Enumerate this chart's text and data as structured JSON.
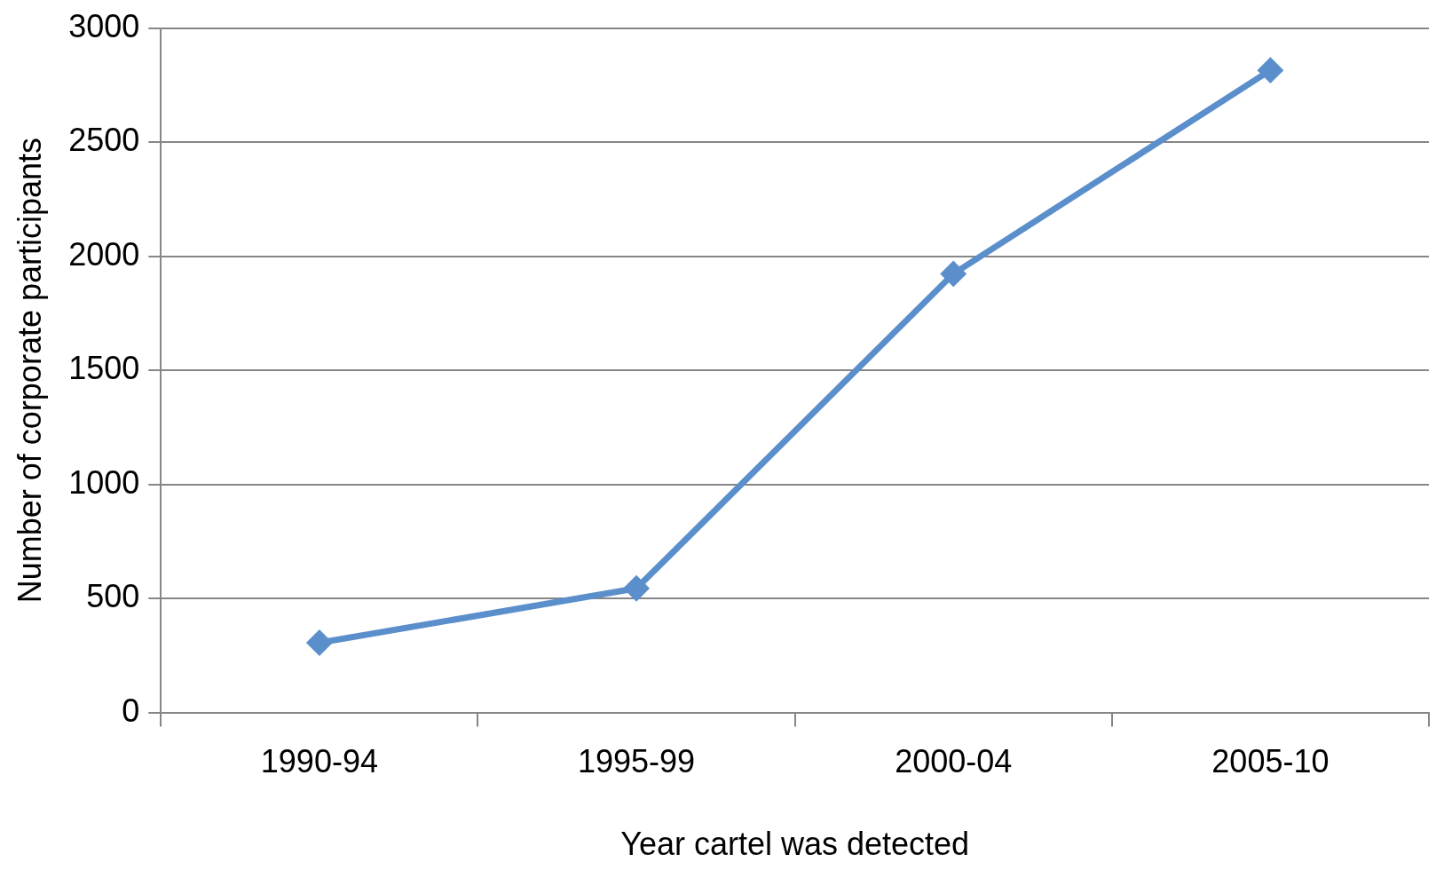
{
  "chart_data": {
    "type": "line",
    "xlabel": "Year cartel was detected",
    "ylabel": "Number of corporate participants",
    "categories": [
      "1990-94",
      "1995-99",
      "2000-04",
      "2005-10"
    ],
    "series": [
      {
        "color": "#5b8fcb",
        "values": [
          306,
          544,
          1923,
          2815
        ]
      }
    ],
    "ylim": [
      0,
      3000
    ],
    "yticks": [
      0,
      500,
      1000,
      1500,
      2000,
      2500,
      3000
    ],
    "grid": "y",
    "legend": false,
    "marker": "diamond",
    "line_style": "solid"
  }
}
